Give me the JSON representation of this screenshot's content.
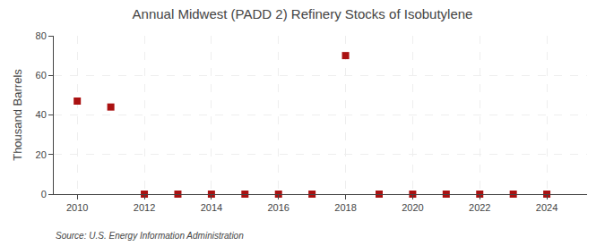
{
  "chart_data": {
    "type": "scatter",
    "title": "Annual Midwest (PADD 2) Refinery Stocks of Isobutylene",
    "ylabel": "Thousand Barrels",
    "annotation": "Source: U.S. Energy Information Administration",
    "x": [
      2010,
      2011,
      2012,
      2013,
      2014,
      2015,
      2016,
      2017,
      2018,
      2019,
      2020,
      2021,
      2022,
      2023,
      2024
    ],
    "values": [
      47,
      44,
      0,
      0,
      0,
      0,
      0,
      0,
      70,
      0,
      0,
      0,
      0,
      0,
      0
    ],
    "color": "#aa1111",
    "marker": "square",
    "xlim": [
      2009.3,
      2025.2
    ],
    "xticks": [
      2010,
      2012,
      2014,
      2016,
      2018,
      2020,
      2022,
      2024
    ],
    "ylim": [
      0,
      80
    ],
    "yticks": [
      0,
      20,
      40,
      60,
      80
    ],
    "grid": true
  }
}
